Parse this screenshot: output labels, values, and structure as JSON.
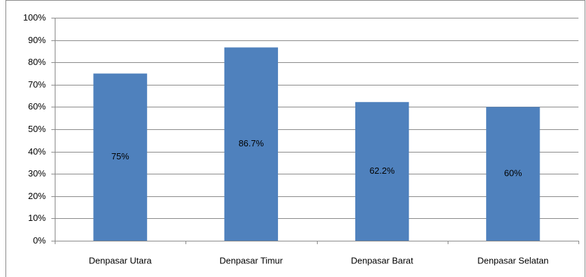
{
  "chart_data": {
    "type": "bar",
    "categories": [
      "Denpasar Utara",
      "Denpasar Timur",
      "Denpasar Barat",
      "Denpasar Selatan"
    ],
    "values": [
      75,
      86.7,
      62.2,
      60
    ],
    "value_labels": [
      "75%",
      "86.7%",
      "62.2%",
      "60%"
    ],
    "color": "#4f81bd",
    "ylim": [
      0,
      100
    ],
    "yticks": [
      {
        "value": 0,
        "label": "0%"
      },
      {
        "value": 10,
        "label": "10%"
      },
      {
        "value": 20,
        "label": "20%"
      },
      {
        "value": 30,
        "label": "30%"
      },
      {
        "value": 40,
        "label": "40%"
      },
      {
        "value": 50,
        "label": "50%"
      },
      {
        "value": 60,
        "label": "60%"
      },
      {
        "value": 70,
        "label": "70%"
      },
      {
        "value": 80,
        "label": "80%"
      },
      {
        "value": 90,
        "label": "90%"
      },
      {
        "value": 100,
        "label": "100%"
      }
    ],
    "grid": true
  }
}
